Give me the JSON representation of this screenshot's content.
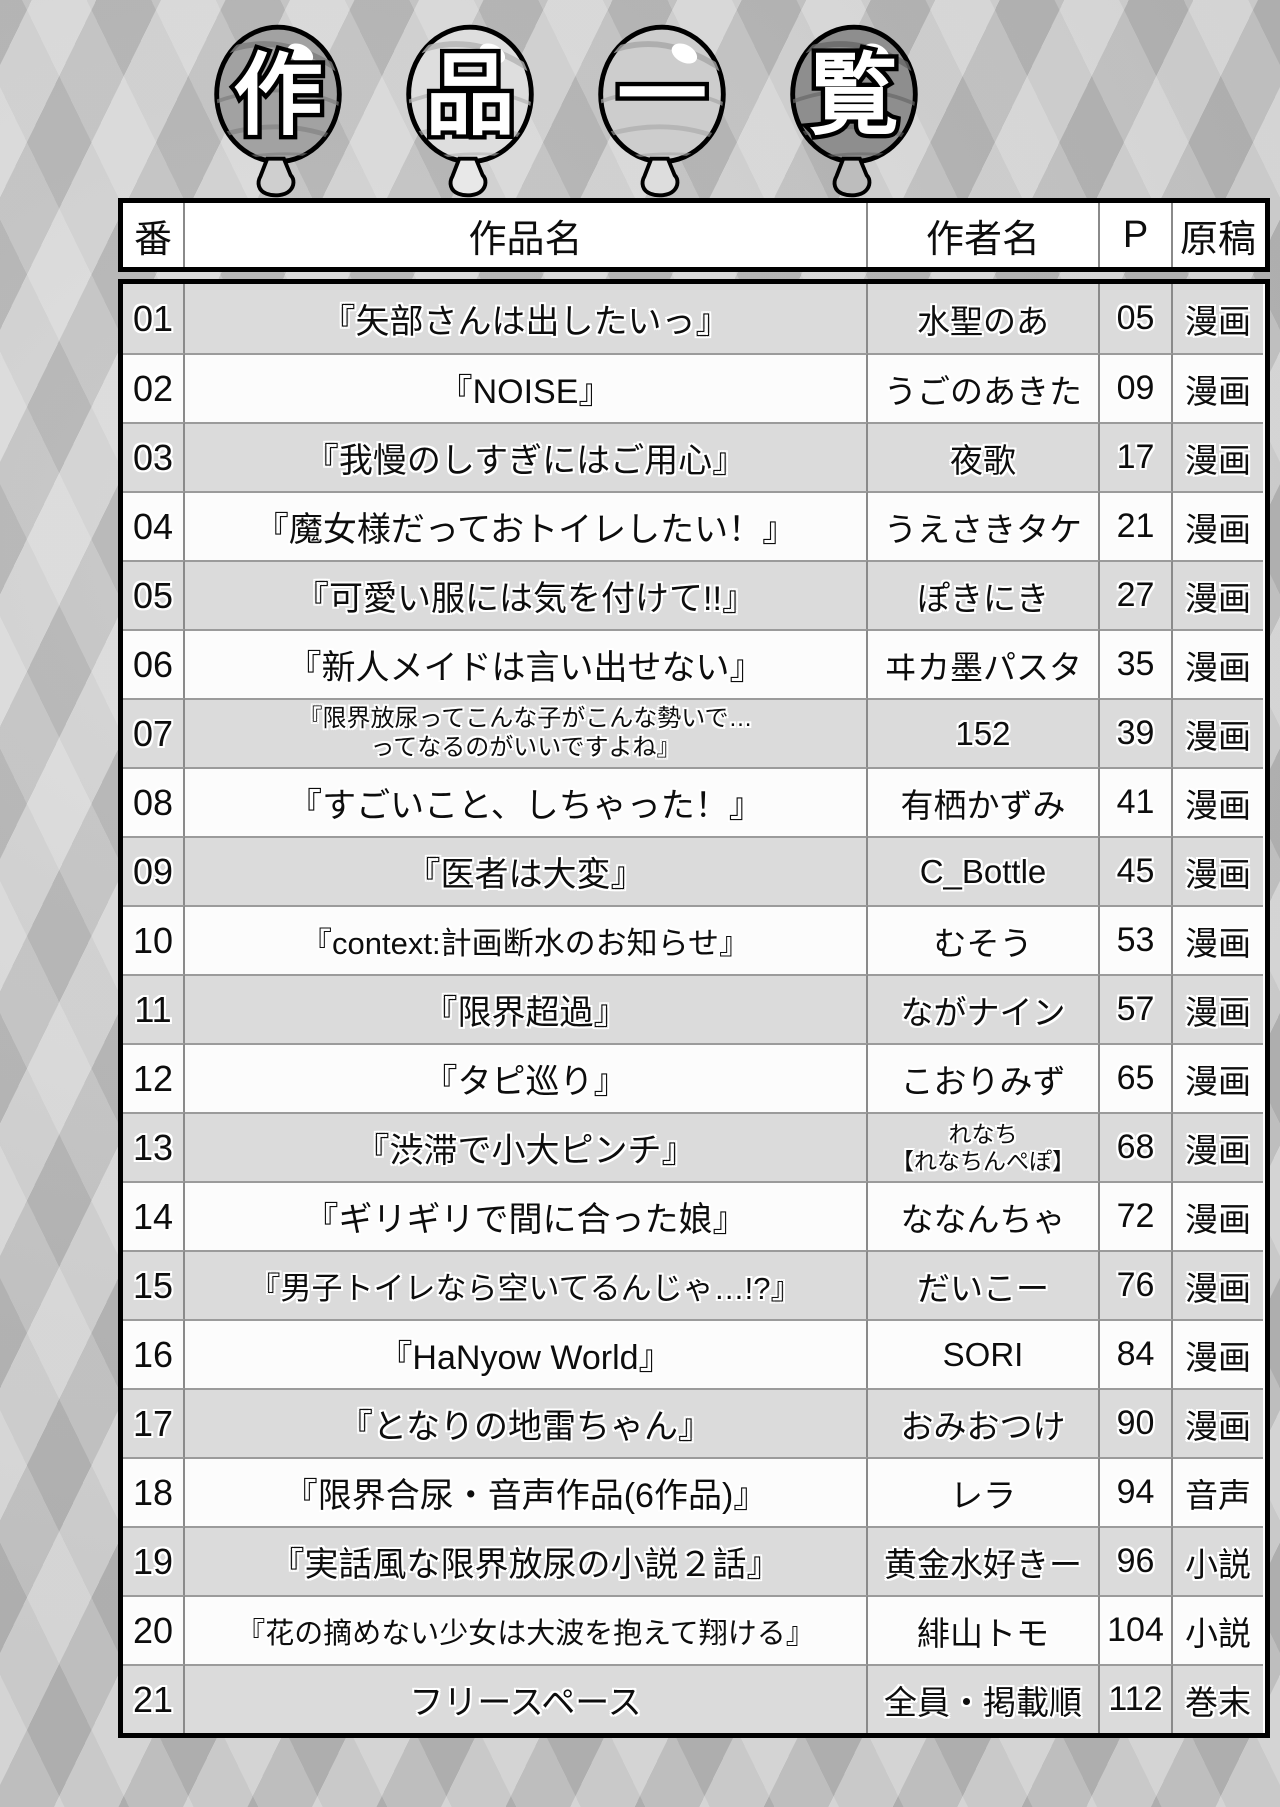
{
  "header": {
    "balloons": [
      {
        "char": "作"
      },
      {
        "char": "品"
      },
      {
        "char": "一"
      },
      {
        "char": "覧"
      }
    ]
  },
  "colors": {
    "row_alt": "#dbdbdb",
    "row_base": "#fcfcfc",
    "table_border": "#000000",
    "grid_line": "#9b9b9b",
    "background": "#c6c6c6"
  },
  "table": {
    "columns": {
      "num": "番",
      "title": "作品名",
      "author": "作者名",
      "page": "P",
      "type": "原稿"
    },
    "rows": [
      {
        "num": "01",
        "title_lines": [
          "『矢部さんは出したいっ』"
        ],
        "author_lines": [
          "水聖のあ"
        ],
        "page": "05",
        "type": "漫画"
      },
      {
        "num": "02",
        "title_lines": [
          "『NOISE』"
        ],
        "author_lines": [
          "うごのあきた"
        ],
        "page": "09",
        "type": "漫画"
      },
      {
        "num": "03",
        "title_lines": [
          "『我慢のしすぎにはご用心』"
        ],
        "author_lines": [
          "夜歌"
        ],
        "page": "17",
        "type": "漫画"
      },
      {
        "num": "04",
        "title_lines": [
          "『魔女様だっておトイレしたい！』"
        ],
        "author_lines": [
          "うえさきタケ"
        ],
        "page": "21",
        "type": "漫画"
      },
      {
        "num": "05",
        "title_lines": [
          "『可愛い服には気を付けて!!』"
        ],
        "author_lines": [
          "ぽきにき"
        ],
        "page": "27",
        "type": "漫画"
      },
      {
        "num": "06",
        "title_lines": [
          "『新人メイドは言い出せない』"
        ],
        "author_lines": [
          "ヰカ墨パスタ"
        ],
        "page": "35",
        "type": "漫画"
      },
      {
        "num": "07",
        "title_lines": [
          "『限界放尿ってこんな子がこんな勢いで…",
          "ってなるのがいいですよね』"
        ],
        "author_lines": [
          "152"
        ],
        "page": "39",
        "type": "漫画"
      },
      {
        "num": "08",
        "title_lines": [
          "『すごいこと、しちゃった！』"
        ],
        "author_lines": [
          "有栖かずみ"
        ],
        "page": "41",
        "type": "漫画"
      },
      {
        "num": "09",
        "title_lines": [
          "『医者は大変』"
        ],
        "author_lines": [
          "C_Bottle"
        ],
        "page": "45",
        "type": "漫画"
      },
      {
        "num": "10",
        "title_lines": [
          "『context:計画断水のお知らせ』"
        ],
        "author_lines": [
          "むそう"
        ],
        "page": "53",
        "type": "漫画"
      },
      {
        "num": "11",
        "title_lines": [
          "『限界超過』"
        ],
        "author_lines": [
          "ながナイン"
        ],
        "page": "57",
        "type": "漫画"
      },
      {
        "num": "12",
        "title_lines": [
          "『タピ巡り』"
        ],
        "author_lines": [
          "こおりみず"
        ],
        "page": "65",
        "type": "漫画"
      },
      {
        "num": "13",
        "title_lines": [
          "『渋滞で小大ピンチ』"
        ],
        "author_lines": [
          "れなち",
          "【れなちんぺぽ】"
        ],
        "page": "68",
        "type": "漫画"
      },
      {
        "num": "14",
        "title_lines": [
          "『ギリギリで間に合った娘』"
        ],
        "author_lines": [
          "ななんちゃ"
        ],
        "page": "72",
        "type": "漫画"
      },
      {
        "num": "15",
        "title_lines": [
          "『男子トイレなら空いてるんじゃ…!?』"
        ],
        "author_lines": [
          "だいこー"
        ],
        "page": "76",
        "type": "漫画"
      },
      {
        "num": "16",
        "title_lines": [
          "『HaNyow World』"
        ],
        "author_lines": [
          "SORI"
        ],
        "page": "84",
        "type": "漫画"
      },
      {
        "num": "17",
        "title_lines": [
          "『となりの地雷ちゃん』"
        ],
        "author_lines": [
          "おみおつけ"
        ],
        "page": "90",
        "type": "漫画"
      },
      {
        "num": "18",
        "title_lines": [
          "『限界合尿・音声作品(6作品)』"
        ],
        "author_lines": [
          "レラ"
        ],
        "page": "94",
        "type": "音声"
      },
      {
        "num": "19",
        "title_lines": [
          "『実話風な限界放尿の小説２話』"
        ],
        "author_lines": [
          "黄金水好きー"
        ],
        "page": "96",
        "type": "小説"
      },
      {
        "num": "20",
        "title_lines": [
          "『花の摘めない少女は大波を抱えて翔ける』"
        ],
        "author_lines": [
          "緋山トモ"
        ],
        "page": "104",
        "type": "小説"
      },
      {
        "num": "21",
        "title_lines": [
          "フリースペース"
        ],
        "author_lines": [
          "全員・掲載順"
        ],
        "page": "112",
        "type": "巻末"
      }
    ]
  }
}
